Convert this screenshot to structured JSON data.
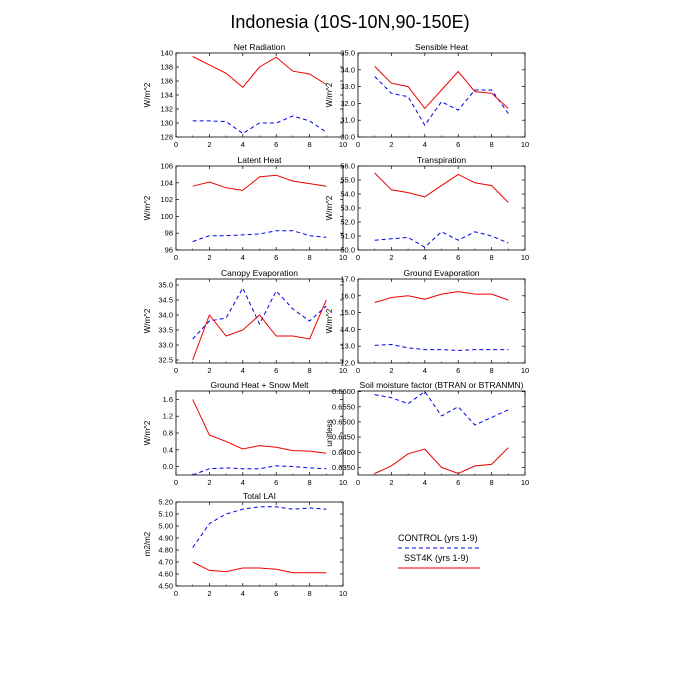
{
  "figure": {
    "title": "Indonesia (10S-10N,90-150E)",
    "legend": [
      {
        "label": "CONTROL (yrs 1-9)",
        "color": "#0000ee",
        "dash": true
      },
      {
        "label": "SST4K (yrs 1-9)",
        "color": "#ee0000",
        "dash": false
      }
    ]
  },
  "chart_data": [
    {
      "type": "line",
      "title": "Net Radiation",
      "ylabel": "W/m^2",
      "xlim": [
        0,
        10
      ],
      "ylim": [
        128,
        140
      ],
      "xticks": [
        "0",
        "2",
        "4",
        "6",
        "8",
        "10"
      ],
      "yticks": [
        "128",
        "130",
        "132",
        "134",
        "136",
        "138",
        "140"
      ],
      "x": [
        1,
        2,
        3,
        4,
        5,
        6,
        7,
        8,
        9
      ],
      "series": [
        {
          "name": "CONTROL (yrs 1-9)",
          "values": [
            130.3,
            130.3,
            130.2,
            128.5,
            130.0,
            130.0,
            131.0,
            130.3,
            128.7
          ]
        },
        {
          "name": "SST4K (yrs 1-9)",
          "values": [
            139.5,
            138.3,
            137.1,
            135.1,
            138.0,
            139.4,
            137.4,
            137.0,
            135.5
          ]
        }
      ]
    },
    {
      "type": "line",
      "title": "Sensible Heat",
      "ylabel": "W/m^2",
      "xlim": [
        0,
        10
      ],
      "ylim": [
        30.0,
        35.0
      ],
      "xticks": [
        "0",
        "2",
        "4",
        "6",
        "8",
        "10"
      ],
      "yticks": [
        "30.0",
        "31.0",
        "32.0",
        "33.0",
        "34.0",
        "35.0"
      ],
      "x": [
        1,
        2,
        3,
        4,
        5,
        6,
        7,
        8,
        9
      ],
      "series": [
        {
          "name": "CONTROL (yrs 1-9)",
          "values": [
            33.6,
            32.6,
            32.4,
            30.7,
            32.1,
            31.6,
            32.8,
            32.8,
            31.4
          ]
        },
        {
          "name": "SST4K (yrs 1-9)",
          "values": [
            34.2,
            33.2,
            33.0,
            31.7,
            32.8,
            33.9,
            32.7,
            32.6,
            31.7
          ]
        }
      ]
    },
    {
      "type": "line",
      "title": "Latent Heat",
      "ylabel": "W/m^2",
      "xlim": [
        0,
        10
      ],
      "ylim": [
        96,
        106
      ],
      "xticks": [
        "0",
        "2",
        "4",
        "6",
        "8",
        "10"
      ],
      "yticks": [
        "96",
        "98",
        "100",
        "102",
        "104",
        "106"
      ],
      "x": [
        1,
        2,
        3,
        4,
        5,
        6,
        7,
        8,
        9
      ],
      "series": [
        {
          "name": "CONTROL (yrs 1-9)",
          "values": [
            97.0,
            97.7,
            97.7,
            97.8,
            97.9,
            98.3,
            98.3,
            97.7,
            97.5
          ]
        },
        {
          "name": "SST4K (yrs 1-9)",
          "values": [
            103.6,
            104.1,
            103.4,
            103.1,
            104.7,
            104.9,
            104.2,
            103.9,
            103.6
          ]
        }
      ]
    },
    {
      "type": "line",
      "title": "Transpiration",
      "ylabel": "W/m^2",
      "xlim": [
        0,
        10
      ],
      "ylim": [
        50.0,
        56.0
      ],
      "xticks": [
        "0",
        "2",
        "4",
        "6",
        "8",
        "10"
      ],
      "yticks": [
        "50.0",
        "51.0",
        "52.0",
        "53.0",
        "54.0",
        "55.0",
        "56.0"
      ],
      "x": [
        1,
        2,
        3,
        4,
        5,
        6,
        7,
        8,
        9
      ],
      "series": [
        {
          "name": "CONTROL (yrs 1-9)",
          "values": [
            50.7,
            50.8,
            50.9,
            50.2,
            51.3,
            50.7,
            51.3,
            51.0,
            50.5
          ]
        },
        {
          "name": "SST4K (yrs 1-9)",
          "values": [
            55.5,
            54.3,
            54.1,
            53.8,
            54.6,
            55.4,
            54.8,
            54.6,
            53.4
          ]
        }
      ]
    },
    {
      "type": "line",
      "title": "Canopy Evaporation",
      "ylabel": "W/m^2",
      "xlim": [
        0,
        10
      ],
      "ylim": [
        32.4,
        35.2
      ],
      "xticks": [
        "0",
        "2",
        "4",
        "6",
        "8",
        "10"
      ],
      "yticks": [
        "32.5",
        "33.0",
        "33.5",
        "34.0",
        "34.5",
        "35.0"
      ],
      "x": [
        1,
        2,
        3,
        4,
        5,
        6,
        7,
        8,
        9
      ],
      "series": [
        {
          "name": "CONTROL (yrs 1-9)",
          "values": [
            33.2,
            33.8,
            33.9,
            34.9,
            33.7,
            34.8,
            34.2,
            33.8,
            34.3
          ]
        },
        {
          "name": "SST4K (yrs 1-9)",
          "values": [
            32.5,
            34.0,
            33.3,
            33.5,
            34.0,
            33.3,
            33.3,
            33.2,
            34.5
          ]
        }
      ]
    },
    {
      "type": "line",
      "title": "Ground Evaporation",
      "ylabel": "W/m^2",
      "xlim": [
        0,
        10
      ],
      "ylim": [
        12.0,
        17.0
      ],
      "xticks": [
        "0",
        "2",
        "4",
        "6",
        "8",
        "10"
      ],
      "yticks": [
        "12.0",
        "13.0",
        "14.0",
        "15.0",
        "16.0",
        "17.0"
      ],
      "x": [
        1,
        2,
        3,
        4,
        5,
        6,
        7,
        8,
        9
      ],
      "series": [
        {
          "name": "CONTROL (yrs 1-9)",
          "values": [
            13.05,
            13.1,
            12.9,
            12.8,
            12.8,
            12.75,
            12.8,
            12.8,
            12.8
          ]
        },
        {
          "name": "SST4K (yrs 1-9)",
          "values": [
            15.6,
            15.9,
            16.0,
            15.8,
            16.1,
            16.25,
            16.1,
            16.1,
            15.75
          ]
        }
      ]
    },
    {
      "type": "line",
      "title": "Ground Heat + Snow Melt",
      "ylabel": "W/m^2",
      "xlim": [
        0,
        10
      ],
      "ylim": [
        -0.2,
        1.8
      ],
      "xticks": [
        "0",
        "2",
        "4",
        "6",
        "8",
        "10"
      ],
      "yticks": [
        "0.0",
        "0.4",
        "0.8",
        "1.2",
        "1.6"
      ],
      "x": [
        1,
        2,
        3,
        4,
        5,
        6,
        7,
        8,
        9
      ],
      "series": [
        {
          "name": "CONTROL (yrs 1-9)",
          "values": [
            -0.2,
            -0.05,
            -0.03,
            -0.05,
            -0.05,
            0.02,
            0.0,
            -0.03,
            -0.05
          ]
        },
        {
          "name": "SST4K (yrs 1-9)",
          "values": [
            1.6,
            0.75,
            0.6,
            0.42,
            0.5,
            0.46,
            0.38,
            0.37,
            0.32
          ]
        }
      ]
    },
    {
      "type": "line",
      "title": "Soil moisture factor (BTRAN or BTRANMN)",
      "ylabel": "unitless",
      "xlim": [
        0,
        10
      ],
      "ylim": [
        0.6325,
        0.6602
      ],
      "xticks": [
        "0",
        "2",
        "4",
        "6",
        "8",
        "10"
      ],
      "yticks": [
        "0.6350",
        "0.6400",
        "0.6450",
        "0.6500",
        "0.6550",
        "0.6600"
      ],
      "x": [
        1,
        2,
        3,
        4,
        5,
        6,
        7,
        8,
        9
      ],
      "series": [
        {
          "name": "CONTROL (yrs 1-9)",
          "values": [
            0.659,
            0.658,
            0.656,
            0.66,
            0.652,
            0.655,
            0.649,
            0.6515,
            0.654
          ]
        },
        {
          "name": "SST4K (yrs 1-9)",
          "values": [
            0.633,
            0.6355,
            0.6395,
            0.641,
            0.635,
            0.633,
            0.6355,
            0.636,
            0.6415
          ]
        }
      ]
    },
    {
      "type": "line",
      "title": "Total LAI",
      "ylabel": "m2/m2",
      "xlim": [
        0,
        10
      ],
      "ylim": [
        4.5,
        5.2
      ],
      "xticks": [
        "0",
        "2",
        "4",
        "6",
        "8",
        "10"
      ],
      "yticks": [
        "4.50",
        "4.60",
        "4.70",
        "4.80",
        "4.90",
        "5.00",
        "5.10",
        "5.20"
      ],
      "x": [
        1,
        2,
        3,
        4,
        5,
        6,
        7,
        8,
        9
      ],
      "series": [
        {
          "name": "CONTROL (yrs 1-9)",
          "values": [
            4.82,
            5.02,
            5.1,
            5.14,
            5.16,
            5.16,
            5.14,
            5.15,
            5.14
          ]
        },
        {
          "name": "SST4K (yrs 1-9)",
          "values": [
            4.7,
            4.63,
            4.62,
            4.65,
            4.65,
            4.64,
            4.61,
            4.61,
            4.61
          ]
        }
      ]
    }
  ]
}
